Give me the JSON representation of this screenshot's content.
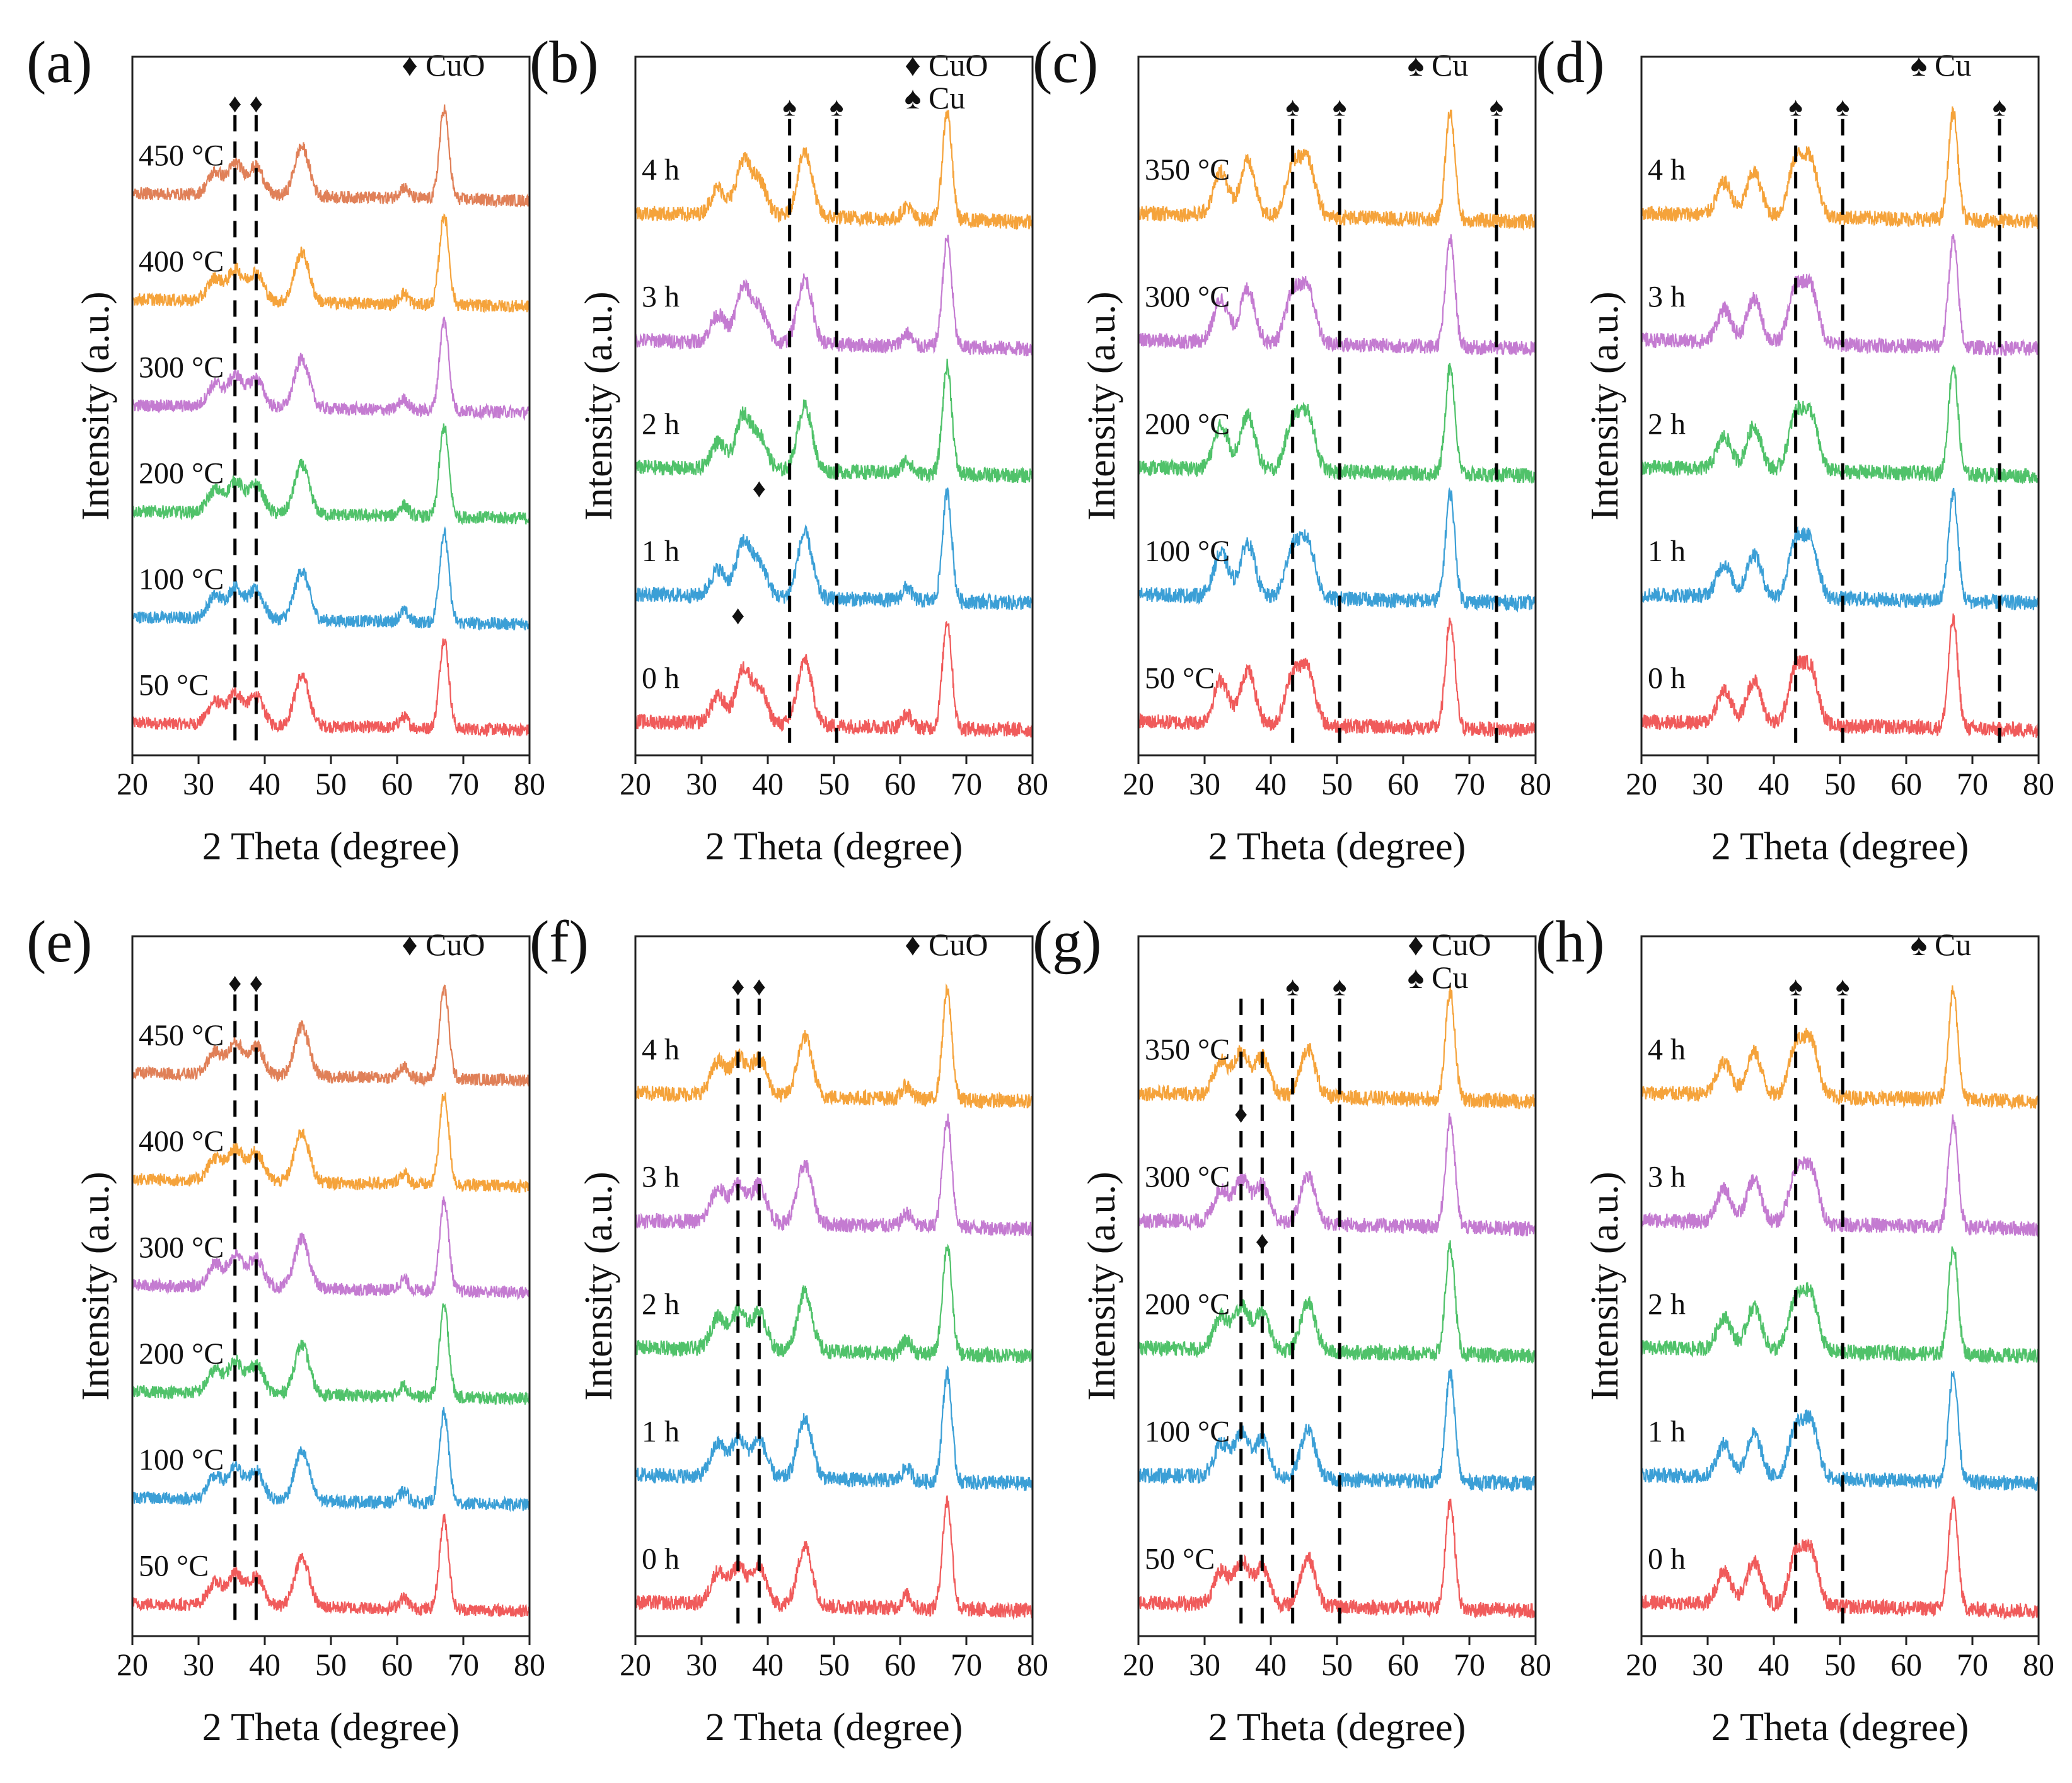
{
  "figure": {
    "x_axis_label": "2 Theta (degree)",
    "y_axis_label": "Intensity (a.u.)",
    "x_ticks": [
      "20",
      "30",
      "40",
      "50",
      "60",
      "70",
      "80"
    ]
  },
  "colors": {
    "series": [
      "#f05b5b",
      "#3b9fd6",
      "#50c26a",
      "#c47bd1",
      "#f5a33b",
      "#e08058"
    ],
    "axis": "#222222",
    "marker": "#000000"
  },
  "chart_data": [
    {
      "panel": "(a)",
      "type": "line",
      "xlabel": "2 Theta (degree)",
      "ylabel": "Intensity (a.u.)",
      "xlim": [
        20,
        80
      ],
      "series_names": [
        "50 °C",
        "100 °C",
        "200 °C",
        "300 °C",
        "400 °C",
        "450 °C"
      ],
      "legend": [
        {
          "symbol": "♦",
          "label": "CuO"
        }
      ],
      "dashed_lines": [
        35.5,
        38.7
      ],
      "annotations": [
        {
          "symbol": "♦",
          "x": 35.5,
          "above": 5
        },
        {
          "symbol": "♦",
          "x": 38.7,
          "above": 5
        }
      ],
      "peaks": [
        {
          "x": 32.5,
          "h": 0.25
        },
        {
          "x": 35.6,
          "h": 0.35
        },
        {
          "x": 38.7,
          "h": 0.32
        },
        {
          "x": 45.6,
          "h": 0.55
        },
        {
          "x": 61.0,
          "h": 0.12
        },
        {
          "x": 67.1,
          "h": 1.0
        }
      ]
    },
    {
      "panel": "(b)",
      "type": "line",
      "xlabel": "2 Theta (degree)",
      "ylabel": "Intensity (a.u.)",
      "xlim": [
        20,
        80
      ],
      "series_names": [
        "0 h",
        "1 h",
        "2 h",
        "3 h",
        "4 h"
      ],
      "legend": [
        {
          "symbol": "♦",
          "label": "CuO"
        },
        {
          "symbol": "♠",
          "label": "Cu"
        }
      ],
      "dashed_lines": [
        43.3,
        50.4
      ],
      "annotations": [
        {
          "symbol": "♦",
          "x": 35.5,
          "above": 0
        },
        {
          "symbol": "♦",
          "x": 38.7,
          "above": 1
        },
        {
          "symbol": "♠",
          "x": 43.3,
          "above": 4
        },
        {
          "symbol": "♠",
          "x": 50.4,
          "above": 4
        }
      ],
      "peaks": [
        {
          "x": 32.5,
          "h": 0.25
        },
        {
          "x": 36.3,
          "h": 0.5
        },
        {
          "x": 38.8,
          "h": 0.3
        },
        {
          "x": 45.6,
          "h": 0.6
        },
        {
          "x": 61.0,
          "h": 0.12
        },
        {
          "x": 67.1,
          "h": 1.0
        }
      ]
    },
    {
      "panel": "(c)",
      "type": "line",
      "xlabel": "2 Theta (degree)",
      "ylabel": "Intensity (a.u.)",
      "xlim": [
        20,
        80
      ],
      "series_names": [
        "50 °C",
        "100 °C",
        "200 °C",
        "300 °C",
        "350 °C"
      ],
      "legend": [
        {
          "symbol": "♠",
          "label": "Cu"
        }
      ],
      "dashed_lines": [
        43.3,
        50.4,
        74.1
      ],
      "annotations": [
        {
          "symbol": "♠",
          "x": 43.3,
          "above": 4
        },
        {
          "symbol": "♠",
          "x": 50.4,
          "above": 4
        },
        {
          "symbol": "♠",
          "x": 74.1,
          "above": 4
        }
      ],
      "peaks": [
        {
          "x": 32.5,
          "h": 0.4
        },
        {
          "x": 36.5,
          "h": 0.5
        },
        {
          "x": 43.3,
          "h": 0.45
        },
        {
          "x": 45.6,
          "h": 0.5
        },
        {
          "x": 67.1,
          "h": 1.0
        }
      ]
    },
    {
      "panel": "(d)",
      "type": "line",
      "xlabel": "2 Theta (degree)",
      "ylabel": "Intensity (a.u.)",
      "xlim": [
        20,
        80
      ],
      "series_names": [
        "0 h",
        "1 h",
        "2 h",
        "3 h",
        "4 h"
      ],
      "legend": [
        {
          "symbol": "♠",
          "label": "Cu"
        }
      ],
      "dashed_lines": [
        43.3,
        50.4,
        74.1
      ],
      "annotations": [
        {
          "symbol": "♠",
          "x": 43.3,
          "above": 4
        },
        {
          "symbol": "♠",
          "x": 50.4,
          "above": 4
        },
        {
          "symbol": "♠",
          "x": 74.1,
          "above": 4
        }
      ],
      "peaks": [
        {
          "x": 32.5,
          "h": 0.3
        },
        {
          "x": 37.0,
          "h": 0.4
        },
        {
          "x": 43.3,
          "h": 0.5
        },
        {
          "x": 45.6,
          "h": 0.5
        },
        {
          "x": 67.1,
          "h": 1.0
        }
      ]
    },
    {
      "panel": "(e)",
      "type": "line",
      "xlabel": "2 Theta (degree)",
      "ylabel": "Intensity (a.u.)",
      "xlim": [
        20,
        80
      ],
      "series_names": [
        "50 °C",
        "100 °C",
        "200 °C",
        "300 °C",
        "400 °C",
        "450 °C"
      ],
      "legend": [
        {
          "symbol": "♦",
          "label": "CuO"
        }
      ],
      "dashed_lines": [
        35.5,
        38.7
      ],
      "annotations": [
        {
          "symbol": "♦",
          "x": 35.5,
          "above": 5
        },
        {
          "symbol": "♦",
          "x": 38.7,
          "above": 5
        }
      ],
      "peaks": [
        {
          "x": 32.5,
          "h": 0.25
        },
        {
          "x": 35.6,
          "h": 0.35
        },
        {
          "x": 38.7,
          "h": 0.32
        },
        {
          "x": 45.6,
          "h": 0.55
        },
        {
          "x": 61.0,
          "h": 0.12
        },
        {
          "x": 67.1,
          "h": 1.0
        }
      ]
    },
    {
      "panel": "(f)",
      "type": "line",
      "xlabel": "2 Theta (degree)",
      "ylabel": "Intensity (a.u.)",
      "xlim": [
        20,
        80
      ],
      "series_names": [
        "0 h",
        "1 h",
        "2 h",
        "3 h",
        "4 h"
      ],
      "legend": [
        {
          "symbol": "♦",
          "label": "CuO"
        }
      ],
      "dashed_lines": [
        35.5,
        38.7
      ],
      "annotations": [
        {
          "symbol": "♦",
          "x": 35.5,
          "above": 4
        },
        {
          "symbol": "♦",
          "x": 38.7,
          "above": 4
        }
      ],
      "peaks": [
        {
          "x": 32.5,
          "h": 0.3
        },
        {
          "x": 35.6,
          "h": 0.35
        },
        {
          "x": 38.7,
          "h": 0.35
        },
        {
          "x": 45.6,
          "h": 0.55
        },
        {
          "x": 61.0,
          "h": 0.12
        },
        {
          "x": 67.1,
          "h": 1.0
        }
      ]
    },
    {
      "panel": "(g)",
      "type": "line",
      "xlabel": "2 Theta (degree)",
      "ylabel": "Intensity (a.u.)",
      "xlim": [
        20,
        80
      ],
      "series_names": [
        "50 °C",
        "100 °C",
        "200 °C",
        "300 °C",
        "350 °C"
      ],
      "legend": [
        {
          "symbol": "♦",
          "label": "CuO"
        },
        {
          "symbol": "♠",
          "label": "Cu"
        }
      ],
      "dashed_lines": [
        35.5,
        38.7,
        43.3,
        50.4
      ],
      "annotations": [
        {
          "symbol": "♦",
          "x": 35.5,
          "above": 3
        },
        {
          "symbol": "♦",
          "x": 38.7,
          "above": 2
        },
        {
          "symbol": "♠",
          "x": 43.3,
          "above": 4
        },
        {
          "symbol": "♠",
          "x": 50.4,
          "above": 4
        }
      ],
      "peaks": [
        {
          "x": 32.5,
          "h": 0.3
        },
        {
          "x": 35.6,
          "h": 0.4
        },
        {
          "x": 38.7,
          "h": 0.35
        },
        {
          "x": 45.6,
          "h": 0.45
        },
        {
          "x": 67.1,
          "h": 1.0
        }
      ]
    },
    {
      "panel": "(h)",
      "type": "line",
      "xlabel": "2 Theta (degree)",
      "ylabel": "Intensity (a.u.)",
      "xlim": [
        20,
        80
      ],
      "series_names": [
        "0 h",
        "1 h",
        "2 h",
        "3 h",
        "4 h"
      ],
      "legend": [
        {
          "symbol": "♠",
          "label": "Cu"
        }
      ],
      "dashed_lines": [
        43.3,
        50.4
      ],
      "annotations": [
        {
          "symbol": "♠",
          "x": 43.3,
          "above": 4
        },
        {
          "symbol": "♠",
          "x": 50.4,
          "above": 4
        }
      ],
      "peaks": [
        {
          "x": 32.5,
          "h": 0.3
        },
        {
          "x": 37.0,
          "h": 0.4
        },
        {
          "x": 43.3,
          "h": 0.45
        },
        {
          "x": 45.6,
          "h": 0.5
        },
        {
          "x": 67.1,
          "h": 1.0
        }
      ]
    }
  ]
}
